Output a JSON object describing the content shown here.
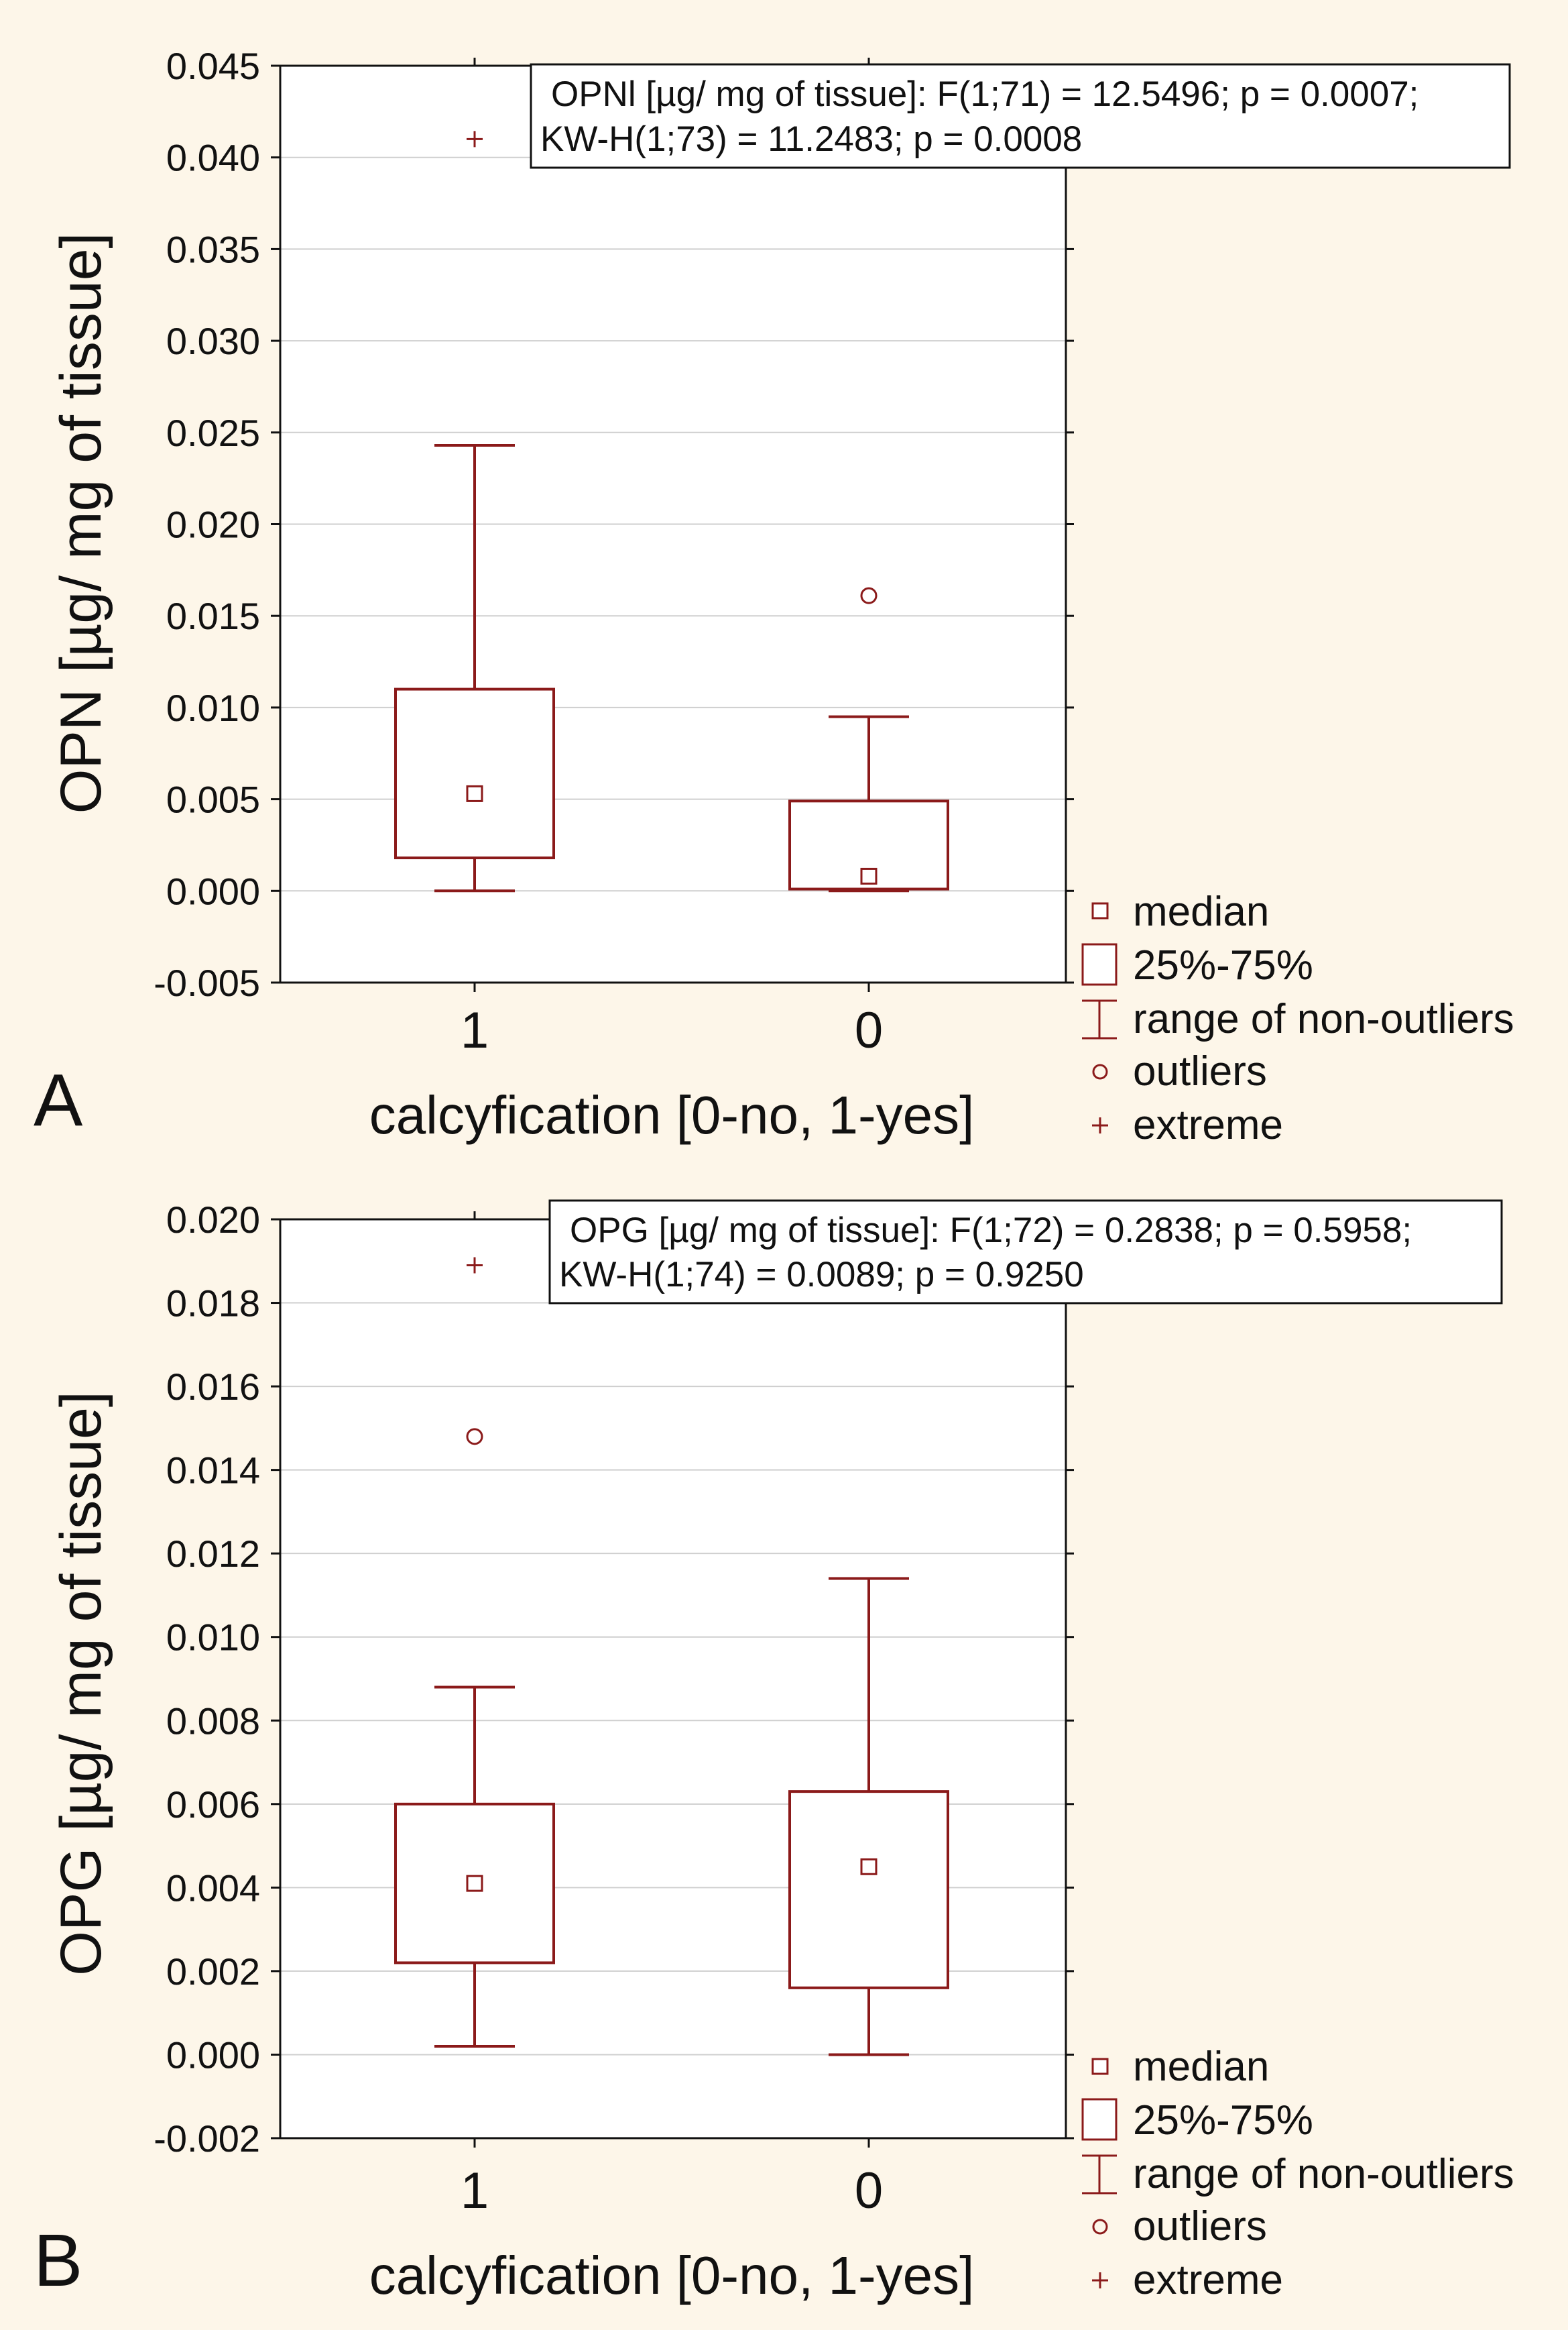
{
  "colors": {
    "background": "#fdf6e9",
    "plot_bg": "#ffffff",
    "box": "#8b1a1a",
    "grid": "#cfcfcf",
    "axis": "#111111"
  },
  "legend_items": {
    "median": "median",
    "box": "25%-75%",
    "whisker": "range of non-outliers",
    "outlier": "outliers",
    "extreme": "extreme"
  },
  "chart_data": [
    {
      "type": "box",
      "panel_label": "A",
      "ylabel": "OPN [µg/ mg of tissue]",
      "xlabel": "calcyfication [0-no, 1-yes]",
      "ylim": [
        -0.005,
        0.045
      ],
      "yticks": [
        "0.045",
        "0.040",
        "0.035",
        "0.030",
        "0.025",
        "0.020",
        "0.015",
        "0.010",
        "0.005",
        "0.000",
        "-0.005"
      ],
      "ytick_values": [
        0.045,
        0.04,
        0.035,
        0.03,
        0.025,
        0.02,
        0.015,
        0.01,
        0.005,
        0.0,
        -0.005
      ],
      "annotation_line1": "OPNl [µg/ mg of tissue]:   F(1;71) = 12.5496; p = 0.0007;",
      "annotation_line2": "KW-H(1;73) = 11.2483; p = 0.0008",
      "categories": [
        "1",
        "0"
      ],
      "boxes": [
        {
          "category": "1",
          "median": 0.0053,
          "q1": 0.0018,
          "q3": 0.011,
          "whisker_low": 0.0,
          "whisker_high": 0.0243,
          "outliers": [],
          "extremes": [
            0.041
          ]
        },
        {
          "category": "0",
          "median": 0.0008,
          "q1": 0.0001,
          "q3": 0.0049,
          "whisker_low": 0.0,
          "whisker_high": 0.0095,
          "outliers": [
            0.0161
          ],
          "extremes": []
        }
      ]
    },
    {
      "type": "box",
      "panel_label": "B",
      "ylabel": "OPG [µg/ mg of tissue]",
      "xlabel": "calcyfication [0-no, 1-yes]",
      "ylim": [
        -0.002,
        0.02
      ],
      "yticks": [
        "0.020",
        "0.018",
        "0.016",
        "0.014",
        "0.012",
        "0.010",
        "0.008",
        "0.006",
        "0.004",
        "0.002",
        "0.000",
        "-0.002"
      ],
      "ytick_values": [
        0.02,
        0.018,
        0.016,
        0.014,
        0.012,
        0.01,
        0.008,
        0.006,
        0.004,
        0.002,
        0.0,
        -0.002
      ],
      "annotation_line1": "OPG [µg/ mg of tissue]:   F(1;72) = 0.2838; p = 0.5958;",
      "annotation_line2": "KW-H(1;74) = 0.0089; p = 0.9250",
      "categories": [
        "1",
        "0"
      ],
      "boxes": [
        {
          "category": "1",
          "median": 0.0041,
          "q1": 0.0022,
          "q3": 0.006,
          "whisker_low": 0.0002,
          "whisker_high": 0.0088,
          "outliers": [
            0.0148
          ],
          "extremes": [
            0.0189
          ]
        },
        {
          "category": "0",
          "median": 0.0045,
          "q1": 0.0016,
          "q3": 0.0063,
          "whisker_low": 0.0,
          "whisker_high": 0.0114,
          "outliers": [],
          "extremes": []
        }
      ]
    }
  ]
}
